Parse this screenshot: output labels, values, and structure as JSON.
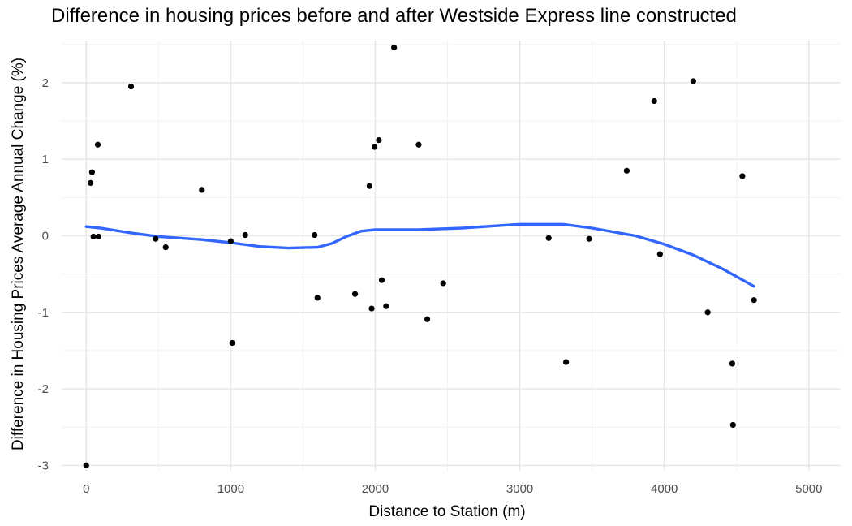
{
  "chart_data": {
    "type": "scatter",
    "title": "Difference in housing prices before and after Westside Express line constructed",
    "xlabel": "Distance to Station (m)",
    "ylabel": "Difference in Housing Prices Average Annual Change (%)",
    "xlim": [
      -170,
      5220
    ],
    "ylim": [
      -3.07,
      2.55
    ],
    "x_ticks": [
      0,
      1000,
      2000,
      3000,
      4000,
      5000
    ],
    "x_tick_labels": [
      "0",
      "1000",
      "2000",
      "3000",
      "4000",
      "5000"
    ],
    "y_ticks": [
      -3,
      -2,
      -1,
      0,
      1,
      2
    ],
    "y_tick_labels": [
      "-3",
      "-2",
      "-1",
      "0",
      "1",
      "2"
    ],
    "grid": true,
    "series": [
      {
        "name": "points",
        "color": "#000000",
        "points": [
          {
            "x": 0,
            "y": -3.0
          },
          {
            "x": 30,
            "y": 0.69
          },
          {
            "x": 40,
            "y": 0.83
          },
          {
            "x": 50,
            "y": -0.01
          },
          {
            "x": 80,
            "y": 1.19
          },
          {
            "x": 85,
            "y": -0.01
          },
          {
            "x": 310,
            "y": 1.95
          },
          {
            "x": 480,
            "y": -0.04
          },
          {
            "x": 550,
            "y": -0.15
          },
          {
            "x": 800,
            "y": 0.6
          },
          {
            "x": 1000,
            "y": -0.07
          },
          {
            "x": 1010,
            "y": -1.4
          },
          {
            "x": 1100,
            "y": 0.01
          },
          {
            "x": 1580,
            "y": 0.01
          },
          {
            "x": 1600,
            "y": -0.81
          },
          {
            "x": 1860,
            "y": -0.76
          },
          {
            "x": 1960,
            "y": 0.65
          },
          {
            "x": 1975,
            "y": -0.95
          },
          {
            "x": 1995,
            "y": 1.16
          },
          {
            "x": 2025,
            "y": 1.25
          },
          {
            "x": 2045,
            "y": -0.58
          },
          {
            "x": 2075,
            "y": -0.92
          },
          {
            "x": 2130,
            "y": 2.46
          },
          {
            "x": 2300,
            "y": 1.19
          },
          {
            "x": 2360,
            "y": -1.09
          },
          {
            "x": 2470,
            "y": -0.62
          },
          {
            "x": 3200,
            "y": -0.03
          },
          {
            "x": 3320,
            "y": -1.65
          },
          {
            "x": 3480,
            "y": -0.04
          },
          {
            "x": 3740,
            "y": 0.85
          },
          {
            "x": 3930,
            "y": 1.76
          },
          {
            "x": 3970,
            "y": -0.24
          },
          {
            "x": 4200,
            "y": 2.02
          },
          {
            "x": 4300,
            "y": -1.0
          },
          {
            "x": 4470,
            "y": -1.67
          },
          {
            "x": 4475,
            "y": -2.47
          },
          {
            "x": 4540,
            "y": 0.78
          },
          {
            "x": 4620,
            "y": -0.84
          }
        ]
      },
      {
        "name": "smooth",
        "color": "#3366ff",
        "line": [
          {
            "x": 0,
            "y": 0.12
          },
          {
            "x": 100,
            "y": 0.1
          },
          {
            "x": 300,
            "y": 0.04
          },
          {
            "x": 500,
            "y": -0.01
          },
          {
            "x": 800,
            "y": -0.05
          },
          {
            "x": 1000,
            "y": -0.09
          },
          {
            "x": 1200,
            "y": -0.14
          },
          {
            "x": 1400,
            "y": -0.16
          },
          {
            "x": 1600,
            "y": -0.15
          },
          {
            "x": 1700,
            "y": -0.1
          },
          {
            "x": 1800,
            "y": -0.01
          },
          {
            "x": 1900,
            "y": 0.06
          },
          {
            "x": 2000,
            "y": 0.08
          },
          {
            "x": 2300,
            "y": 0.08
          },
          {
            "x": 2600,
            "y": 0.1
          },
          {
            "x": 3000,
            "y": 0.15
          },
          {
            "x": 3300,
            "y": 0.15
          },
          {
            "x": 3500,
            "y": 0.1
          },
          {
            "x": 3800,
            "y": 0.0
          },
          {
            "x": 4000,
            "y": -0.11
          },
          {
            "x": 4200,
            "y": -0.25
          },
          {
            "x": 4400,
            "y": -0.43
          },
          {
            "x": 4620,
            "y": -0.66
          }
        ]
      }
    ]
  }
}
